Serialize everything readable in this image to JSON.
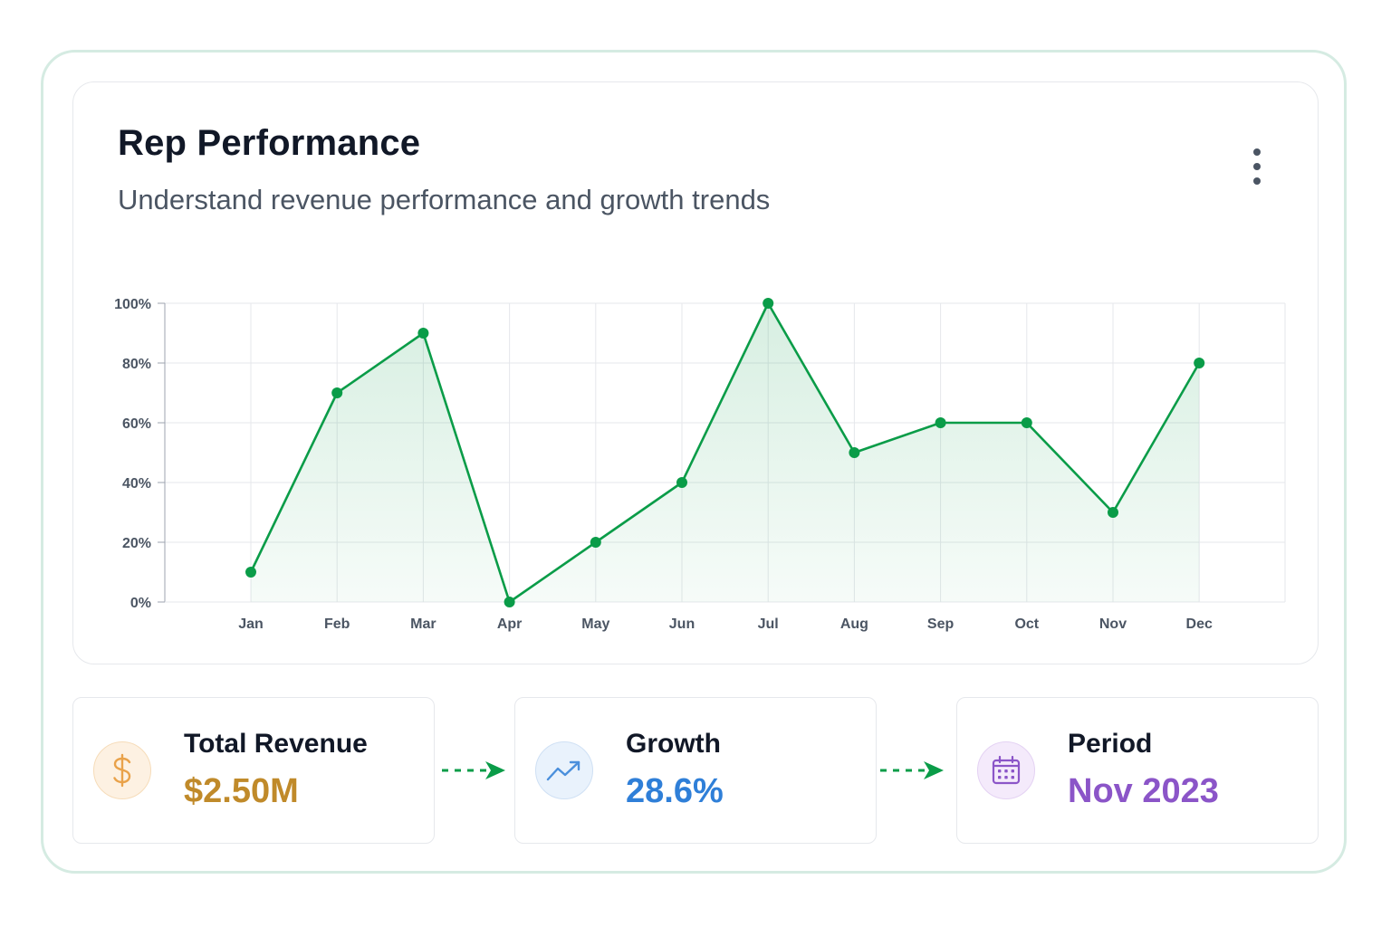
{
  "header": {
    "title": "Rep Performance",
    "subtitle": "Understand revenue performance and growth trends",
    "menu_icon": "more-vertical-icon"
  },
  "colors": {
    "line": "#0a9c48",
    "area": "#21a55a",
    "revenue": "#c08a2a",
    "growth": "#2f7fd8",
    "period": "#8b55c8",
    "arrow": "#0a9c48"
  },
  "chart_data": {
    "type": "line",
    "categories": [
      "Jan",
      "Feb",
      "Mar",
      "Apr",
      "May",
      "Jun",
      "Jul",
      "Aug",
      "Sep",
      "Oct",
      "Nov",
      "Dec"
    ],
    "series": [
      {
        "values": [
          10,
          70,
          90,
          0,
          20,
          40,
          100,
          50,
          60,
          60,
          30,
          80
        ]
      }
    ],
    "ylim": [
      0,
      100
    ],
    "yticks": [
      "0%",
      "20%",
      "40%",
      "60%",
      "80%",
      "100%"
    ],
    "grid": true,
    "area_fill": true
  },
  "stats": [
    {
      "label": "Total Revenue",
      "value": "$2.50M",
      "icon": "dollar-icon"
    },
    {
      "label": "Growth",
      "value": "28.6%",
      "icon": "trending-up-icon"
    },
    {
      "label": "Period",
      "value": "Nov 2023",
      "icon": "calendar-icon"
    }
  ]
}
